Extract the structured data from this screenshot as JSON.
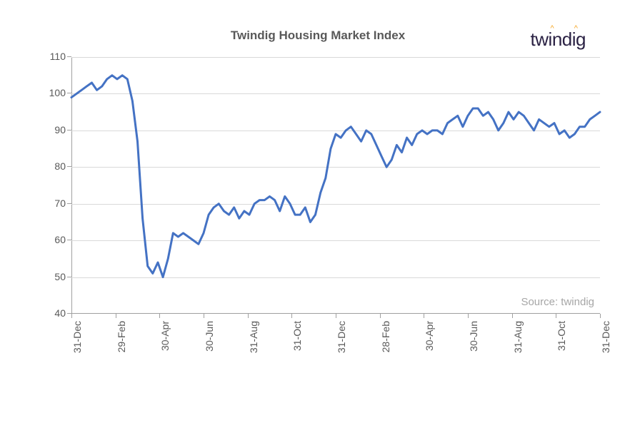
{
  "chart": {
    "type": "line",
    "title": "Twindig Housing Market Index",
    "source_label": "Source: twindig",
    "logo_text": "twindig",
    "title_color": "#595959",
    "title_fontsize": 17,
    "line_color": "#4472c4",
    "line_width": 3,
    "grid_color": "#d9d9d9",
    "axis_color": "#a0a0a0",
    "tick_label_color": "#595959",
    "tick_label_fontsize": 14,
    "source_color": "#a6a6a6",
    "background_color": "#ffffff",
    "logo_color": "#2b2244",
    "logo_accent_color": "#f5a623",
    "ylim": [
      40,
      110
    ],
    "ytick_step": 10,
    "yticks": [
      40,
      50,
      60,
      70,
      80,
      90,
      100,
      110
    ],
    "xtick_labels": [
      "31-Dec",
      "29-Feb",
      "30-Apr",
      "30-Jun",
      "31-Aug",
      "31-Oct",
      "31-Dec",
      "28-Feb",
      "30-Apr",
      "30-Jun",
      "31-Aug",
      "31-Oct",
      "31-Dec"
    ],
    "x_count": 105,
    "series": [
      99,
      100,
      101,
      102,
      103,
      101,
      102,
      104,
      105,
      104,
      105,
      104,
      98,
      87,
      66,
      53,
      51,
      54,
      50,
      55,
      62,
      61,
      62,
      61,
      60,
      59,
      62,
      67,
      69,
      70,
      68,
      67,
      69,
      66,
      68,
      67,
      70,
      71,
      71,
      72,
      71,
      68,
      72,
      70,
      67,
      67,
      69,
      65,
      67,
      73,
      77,
      85,
      89,
      88,
      90,
      91,
      89,
      87,
      90,
      89,
      86,
      83,
      80,
      82,
      86,
      84,
      88,
      86,
      89,
      90,
      89,
      90,
      90,
      89,
      92,
      93,
      94,
      91,
      94,
      96,
      96,
      94,
      95,
      93,
      90,
      92,
      95,
      93,
      95,
      94,
      92,
      90,
      93,
      92,
      91,
      92,
      89,
      90,
      88,
      89,
      91,
      91,
      93,
      94,
      95
    ]
  }
}
